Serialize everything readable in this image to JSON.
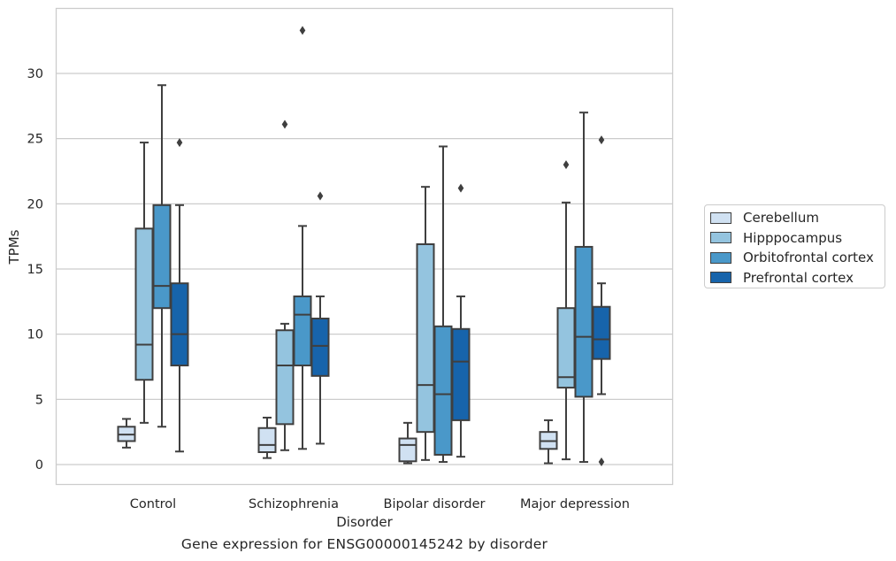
{
  "chart_data": {
    "type": "box",
    "title": "Gene expression for ENSG00000145242 by disorder",
    "xlabel": "Disorder",
    "ylabel": "TPMs",
    "categories": [
      "Control",
      "Schizophrenia",
      "Bipolar disorder",
      "Major depression"
    ],
    "ylim": [
      -1.5,
      35
    ],
    "yticks": [
      0,
      5,
      10,
      15,
      20,
      25,
      30
    ],
    "grid": "horizontal",
    "legend_position": "right",
    "series": [
      {
        "name": "Cerebellum",
        "color": "#d0e1f2",
        "boxes": [
          {
            "whisker_low": 1.3,
            "q1": 1.8,
            "median": 2.3,
            "q3": 2.9,
            "whisker_high": 3.5,
            "outliers": []
          },
          {
            "whisker_low": 0.5,
            "q1": 0.95,
            "median": 1.5,
            "q3": 2.8,
            "whisker_high": 3.6,
            "outliers": []
          },
          {
            "whisker_low": 0.1,
            "q1": 0.25,
            "median": 1.5,
            "q3": 2.0,
            "whisker_high": 3.2,
            "outliers": []
          },
          {
            "whisker_low": 0.1,
            "q1": 1.2,
            "median": 1.8,
            "q3": 2.5,
            "whisker_high": 3.4,
            "outliers": []
          }
        ]
      },
      {
        "name": "Hipppocampus",
        "color": "#94c4df",
        "boxes": [
          {
            "whisker_low": 3.2,
            "q1": 6.5,
            "median": 9.2,
            "q3": 18.1,
            "whisker_high": 24.7,
            "outliers": []
          },
          {
            "whisker_low": 1.1,
            "q1": 3.1,
            "median": 7.6,
            "q3": 10.3,
            "whisker_high": 10.8,
            "outliers": [
              26.1
            ]
          },
          {
            "whisker_low": 0.35,
            "q1": 2.5,
            "median": 6.1,
            "q3": 16.9,
            "whisker_high": 21.3,
            "outliers": []
          },
          {
            "whisker_low": 0.4,
            "q1": 5.9,
            "median": 6.7,
            "q3": 12.0,
            "whisker_high": 20.1,
            "outliers": [
              23.0
            ]
          }
        ]
      },
      {
        "name": "Orbitofrontal cortex",
        "color": "#4a98c9",
        "boxes": [
          {
            "whisker_low": 2.9,
            "q1": 12.0,
            "median": 13.7,
            "q3": 19.9,
            "whisker_high": 29.1,
            "outliers": []
          },
          {
            "whisker_low": 1.2,
            "q1": 7.6,
            "median": 11.5,
            "q3": 12.9,
            "whisker_high": 18.3,
            "outliers": [
              33.3
            ]
          },
          {
            "whisker_low": 0.2,
            "q1": 0.75,
            "median": 5.4,
            "q3": 10.6,
            "whisker_high": 24.4,
            "outliers": []
          },
          {
            "whisker_low": 0.2,
            "q1": 5.2,
            "median": 9.8,
            "q3": 16.7,
            "whisker_high": 27.0,
            "outliers": []
          }
        ]
      },
      {
        "name": "Prefrontal cortex",
        "color": "#1764ab",
        "boxes": [
          {
            "whisker_low": 1.0,
            "q1": 7.6,
            "median": 10.0,
            "q3": 13.9,
            "whisker_high": 19.9,
            "outliers": [
              24.7
            ]
          },
          {
            "whisker_low": 1.6,
            "q1": 6.8,
            "median": 9.1,
            "q3": 11.2,
            "whisker_high": 12.9,
            "outliers": [
              20.6
            ]
          },
          {
            "whisker_low": 0.6,
            "q1": 3.4,
            "median": 7.9,
            "q3": 10.4,
            "whisker_high": 12.9,
            "outliers": [
              21.2
            ]
          },
          {
            "whisker_low": 5.4,
            "q1": 8.1,
            "median": 9.6,
            "q3": 12.1,
            "whisker_high": 13.9,
            "outliers": [
              0.2,
              24.9
            ]
          }
        ]
      }
    ]
  }
}
